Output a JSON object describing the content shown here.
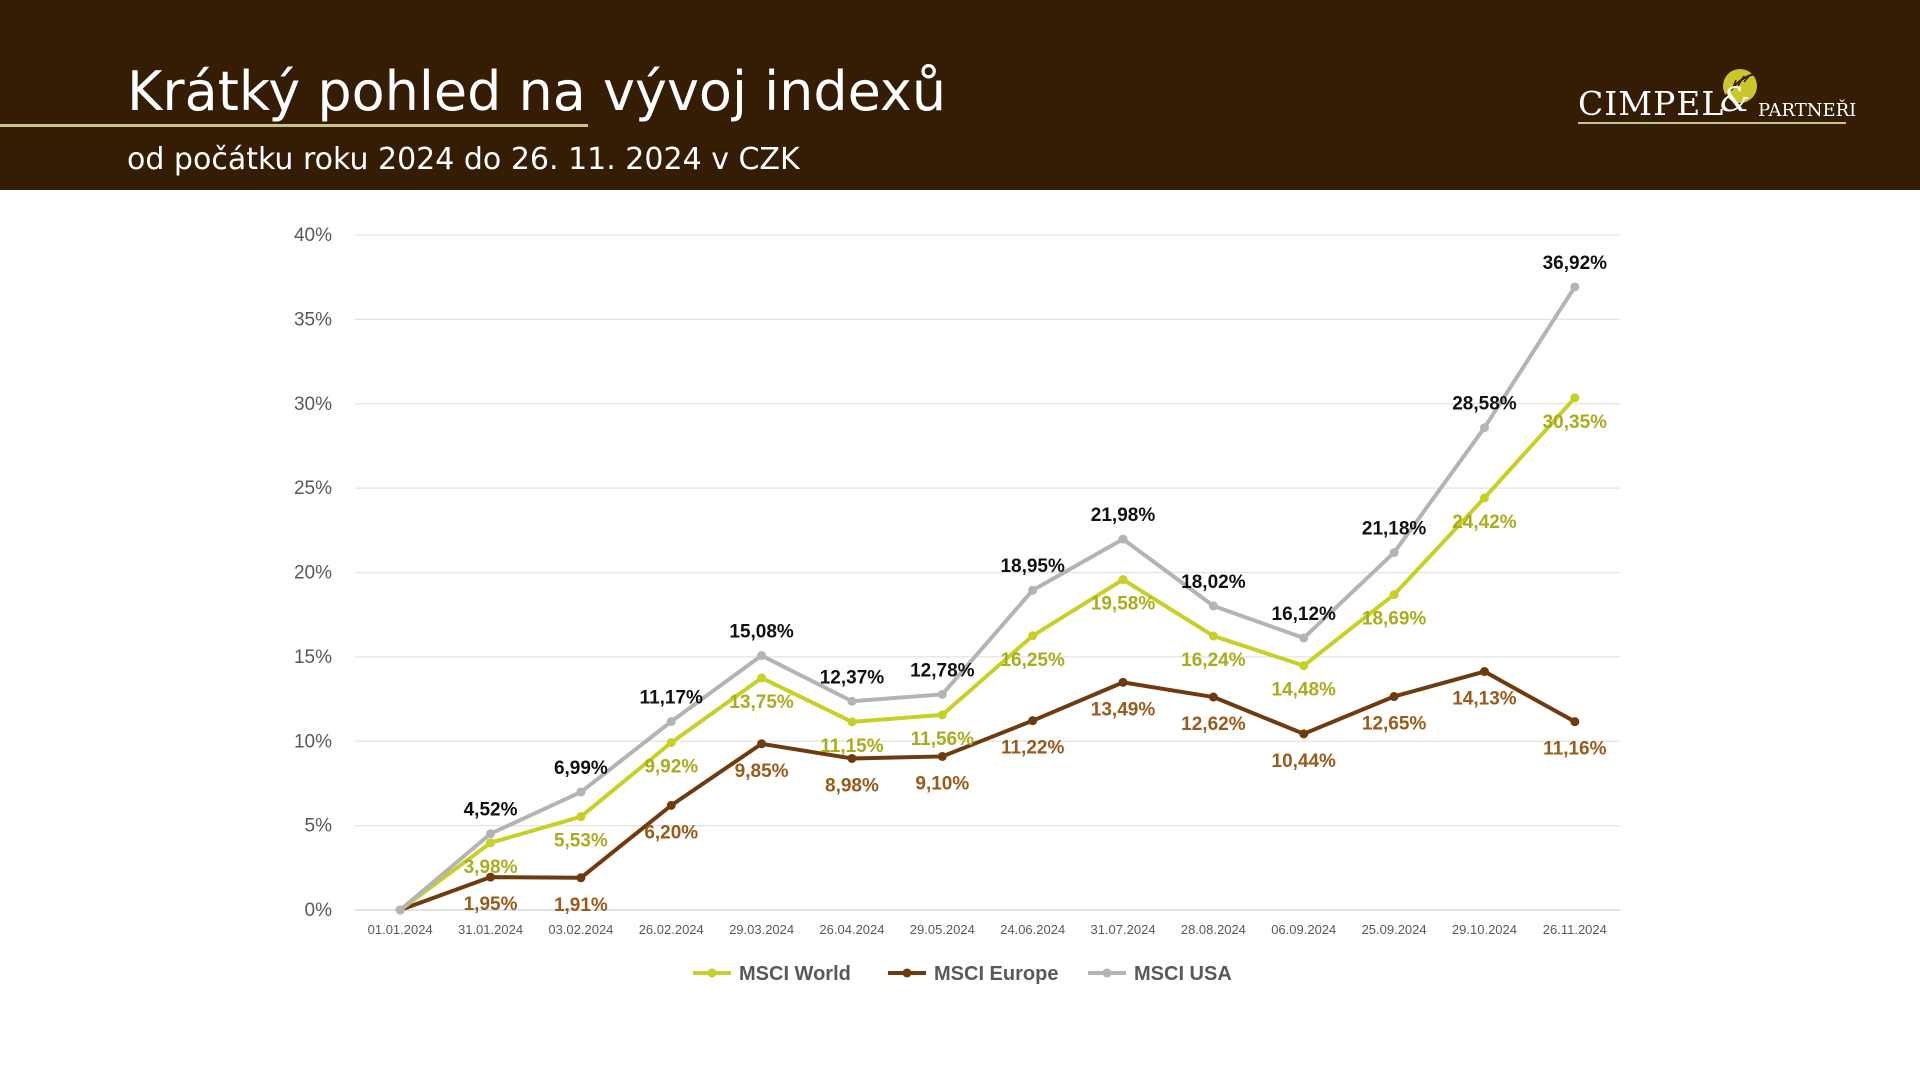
{
  "header": {
    "title": "Krátký pohled na vývoj indexů",
    "subtitle": "od počátku roku 2024 do 26. 11. 2024 v CZK",
    "logo_main": "CIMPEL",
    "logo_amp": "&",
    "logo_sub": "PARTNEŘI"
  },
  "colors": {
    "header_bg": "#351c04",
    "world": "#c8d026",
    "europe": "#6f3a0d",
    "usa": "#b4b4b4",
    "world_label": "#a9ad1c",
    "europe_label": "#9a5a1c",
    "usa_label": "#111111"
  },
  "chart_data": {
    "type": "line",
    "categories": [
      "01.01.2024",
      "31.01.2024",
      "03.02.2024",
      "26.02.2024",
      "29.03.2024",
      "26.04.2024",
      "29.05.2024",
      "24.06.2024",
      "31.07.2024",
      "28.08.2024",
      "06.09.2024",
      "25.09.2024",
      "29.10.2024",
      "26.11.2024"
    ],
    "y_ticks": [
      "0%",
      "5%",
      "10%",
      "15%",
      "20%",
      "25%",
      "30%",
      "35%",
      "40%"
    ],
    "ylim": [
      0,
      40
    ],
    "grid": true,
    "legend_position": "bottom",
    "series": [
      {
        "name": "MSCI World",
        "color_key": "world",
        "values": [
          0,
          3.98,
          5.53,
          9.92,
          13.75,
          11.15,
          11.56,
          16.25,
          19.58,
          16.24,
          14.48,
          18.69,
          24.42,
          30.35
        ],
        "labels": [
          "",
          "3,98%",
          "5,53%",
          "9,92%",
          "13,75%",
          "11,15%",
          "11,56%",
          "16,25%",
          "19,58%",
          "16,24%",
          "14,48%",
          "18,69%",
          "24,42%",
          "30,35%"
        ]
      },
      {
        "name": "MSCI Europe",
        "color_key": "europe",
        "values": [
          0,
          1.95,
          1.91,
          6.2,
          9.85,
          8.98,
          9.1,
          11.22,
          13.49,
          12.62,
          10.44,
          12.65,
          14.13,
          11.16
        ],
        "labels": [
          "",
          "1,95%",
          "1,91%",
          "6,20%",
          "9,85%",
          "8,98%",
          "9,10%",
          "11,22%",
          "13,49%",
          "12,62%",
          "10,44%",
          "12,65%",
          "14,13%",
          "11,16%"
        ]
      },
      {
        "name": "MSCI USA",
        "color_key": "usa",
        "values": [
          0,
          4.52,
          6.99,
          11.17,
          15.08,
          12.37,
          12.78,
          18.95,
          21.98,
          18.02,
          16.12,
          21.18,
          28.58,
          36.92
        ],
        "labels": [
          "",
          "4,52%",
          "6,99%",
          "11,17%",
          "15,08%",
          "12,37%",
          "12,78%",
          "18,95%",
          "21,98%",
          "18,02%",
          "16,12%",
          "21,18%",
          "28,58%",
          "36,92%"
        ]
      }
    ]
  }
}
